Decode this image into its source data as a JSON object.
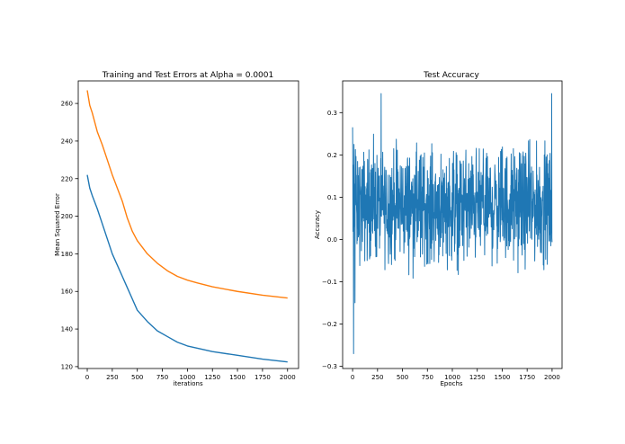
{
  "chart_data": [
    {
      "type": "line",
      "title": "Training and Test Errors at Alpha = 0.0001",
      "xlabel": "iterations",
      "ylabel": "Mean Squared Error",
      "xlim": [
        -90,
        2110
      ],
      "ylim": [
        119,
        272
      ],
      "xticks": [
        0,
        250,
        500,
        750,
        1000,
        1250,
        1500,
        1750,
        2000
      ],
      "yticks": [
        120,
        140,
        160,
        180,
        200,
        220,
        240,
        260
      ],
      "grid": false,
      "series": [
        {
          "color": "#ff7f0e",
          "x": [
            0,
            25,
            50,
            100,
            150,
            200,
            250,
            300,
            350,
            400,
            450,
            500,
            600,
            700,
            800,
            900,
            1000,
            1100,
            1250,
            1500,
            1750,
            2000
          ],
          "values": [
            267,
            259,
            255,
            245,
            238,
            230,
            222,
            215,
            208,
            199,
            192,
            187,
            180,
            175,
            171,
            168,
            166,
            164.5,
            162.5,
            160,
            158,
            156.5
          ]
        },
        {
          "color": "#1f77b4",
          "x": [
            0,
            25,
            50,
            100,
            150,
            200,
            250,
            300,
            350,
            400,
            450,
            500,
            550,
            600,
            700,
            800,
            900,
            1000,
            1250,
            1500,
            1750,
            2000
          ],
          "values": [
            222,
            215,
            211,
            204,
            196,
            188,
            180,
            174,
            168,
            162,
            156,
            150,
            147,
            144,
            139,
            136,
            133,
            131,
            128,
            126,
            124,
            122.5
          ]
        }
      ]
    },
    {
      "type": "line",
      "title": "Test Accuracy",
      "xlabel": "Epochs",
      "ylabel": "Accuracy",
      "xlim": [
        -100,
        2100
      ],
      "ylim": [
        -0.305,
        0.375
      ],
      "xticks": [
        0,
        250,
        500,
        750,
        1000,
        1250,
        1500,
        1750,
        2000
      ],
      "yticks": [
        -0.3,
        -0.2,
        -0.1,
        0.0,
        0.1,
        0.2,
        0.3
      ],
      "ytick_labels": [
        "−0.3",
        "−0.2",
        "−0.1",
        "0.0",
        "0.1",
        "0.2",
        "0.3"
      ],
      "grid": false,
      "noisy": true,
      "series": [
        {
          "color": "#1f77b4",
          "x_start": 0,
          "x_end": 2000,
          "mean": 0.08,
          "typical_spread": 0.07,
          "min": -0.27,
          "max": 0.345
        }
      ]
    }
  ]
}
